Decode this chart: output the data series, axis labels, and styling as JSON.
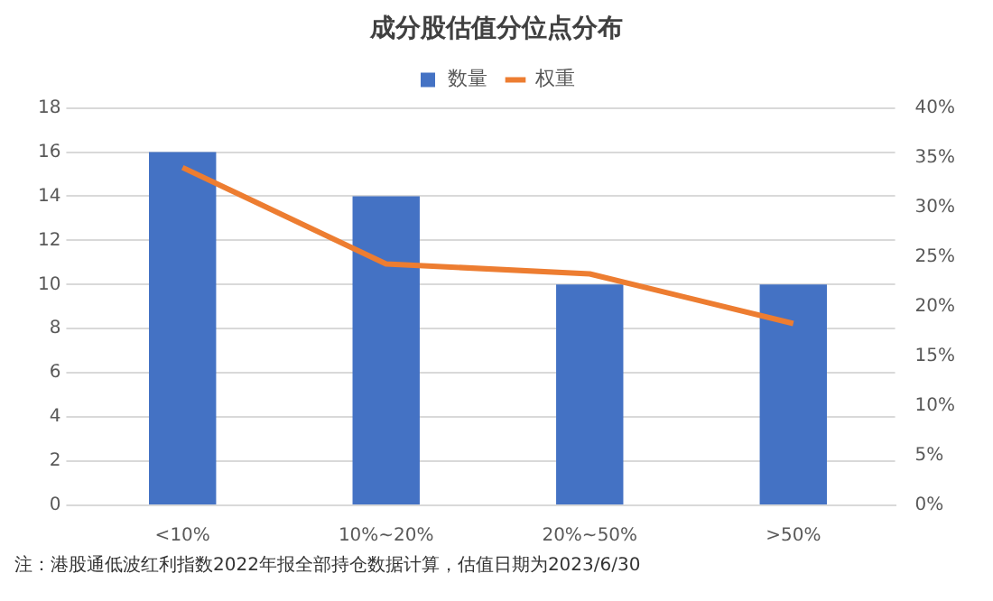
{
  "chart_data": {
    "type": "bar",
    "title": "成分股估值分位点分布",
    "categories": [
      "<10%",
      "10%~20%",
      "20%~50%",
      ">50%"
    ],
    "series": [
      {
        "name": "数量",
        "color": "#4472c4",
        "values": [
          16,
          14,
          10,
          10
        ]
      },
      {
        "name": "权重",
        "type": "line",
        "axis": "y2",
        "color": "#ed7d31",
        "values": [
          34,
          24.3,
          23.3,
          18.3
        ]
      }
    ],
    "ylim": [
      0,
      18
    ],
    "yticks": [
      0,
      2,
      4,
      6,
      8,
      10,
      12,
      14,
      16,
      18
    ],
    "y2lim": [
      0,
      40
    ],
    "y2ticks": [
      {
        "value": 0,
        "label": "0%"
      },
      {
        "value": 5,
        "label": "5%"
      },
      {
        "value": 10,
        "label": "10%"
      },
      {
        "value": 15,
        "label": "15%"
      },
      {
        "value": 20,
        "label": "20%"
      },
      {
        "value": 25,
        "label": "25%"
      },
      {
        "value": 30,
        "label": "30%"
      },
      {
        "value": 35,
        "label": "35%"
      },
      {
        "value": 40,
        "label": "40%"
      }
    ],
    "grid": "y",
    "legend": "top",
    "marker": "none",
    "annotations": [
      "注：港股通低波红利指数2022年报全部持仓数据计算，估值日期为2023/6/30"
    ]
  }
}
